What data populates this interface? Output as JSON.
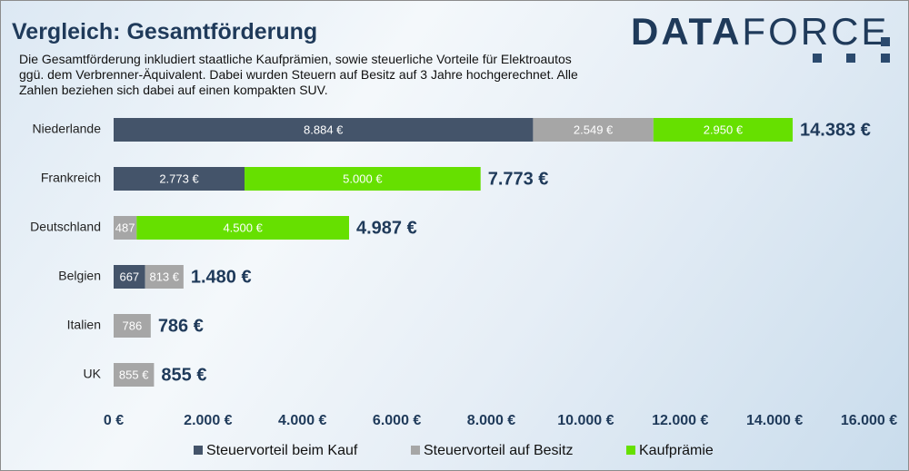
{
  "chart_data": {
    "type": "stacked-bar-horizontal",
    "title": "Vergleich: Gesamtförderung",
    "subtitle": [
      "Die Gesamtförderung inkludiert  staatliche Kaufprämien, sowie steuerliche Vorteile für Elektroautos",
      "ggü. dem Verbrenner-Äquivalent.  Dabei wurden Steuern auf Besitz auf 3 Jahre hochgerechnet. Alle",
      "Zahlen beziehen sich dabei auf einen kompakten  SUV."
    ],
    "logo": {
      "bold": "DATA",
      "light": "FORCE"
    },
    "categories": [
      "Niederlande",
      "Frankreich",
      "Deutschland",
      "Belgien",
      "Italien",
      "UK"
    ],
    "series": [
      {
        "name": "Steuervorteil beim Kauf",
        "color": "#44546a",
        "values": [
          8884,
          2773,
          null,
          667,
          null,
          null
        ],
        "value_labels": [
          "8.884 €",
          "2.773 €",
          null,
          "667",
          null,
          null
        ]
      },
      {
        "name": "Steuervorteil auf Besitz",
        "color": "#a6a6a6",
        "values": [
          2549,
          null,
          487,
          813,
          786,
          855
        ],
        "value_labels": [
          "2.549 €",
          null,
          "487",
          "813 €",
          "786",
          "855 €"
        ]
      },
      {
        "name": "Kaufprämie",
        "color": "#66e000",
        "values": [
          2950,
          5000,
          4500,
          null,
          null,
          null
        ],
        "value_labels": [
          "2.950 €",
          "5.000 €",
          "4.500 €",
          null,
          null,
          null
        ]
      }
    ],
    "totals": {
      "values": [
        14383,
        7773,
        4987,
        1480,
        786,
        855
      ],
      "value_labels": [
        "14.383 €",
        "7.773 €",
        "4.987 €",
        "1.480 €",
        "786 €",
        "855 €"
      ]
    },
    "xlim": [
      0,
      16000
    ],
    "xticks": [
      {
        "value": 0,
        "label": "0 €"
      },
      {
        "value": 2000,
        "label": "2.000 €"
      },
      {
        "value": 4000,
        "label": "4.000 €"
      },
      {
        "value": 6000,
        "label": "6.000 €"
      },
      {
        "value": 8000,
        "label": "8.000 €"
      },
      {
        "value": 10000,
        "label": "10.000 €"
      },
      {
        "value": 12000,
        "label": "12.000 €"
      },
      {
        "value": 14000,
        "label": "14.000 €"
      },
      {
        "value": 16000,
        "label": "16.000 €"
      }
    ],
    "grid": false,
    "legend": "bottom"
  }
}
